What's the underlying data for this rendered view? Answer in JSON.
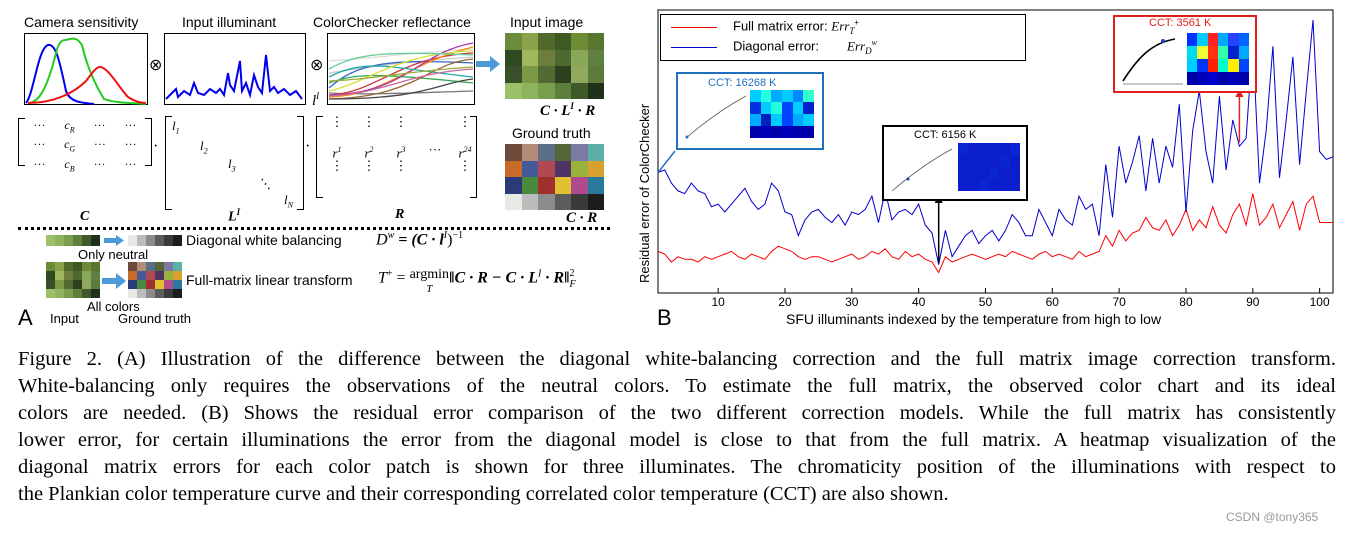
{
  "panelA": {
    "letter": "A",
    "titles": {
      "camera": "Camera sensitivity",
      "illuminant": "Input illuminant",
      "reflectance": "ColorChecker reflectance",
      "input_image": "Input image",
      "ground_truth": "Ground truth"
    },
    "otimes": "⊗",
    "l_label": "l",
    "l_sup": "I",
    "product_in": "C · L",
    "product_in_sup": "I",
    "product_in_tail": " · R",
    "product_gt": "C · R",
    "mat_C": {
      "rows": [
        [
          "···",
          "c",
          "R",
          "···",
          "···"
        ],
        [
          "···",
          "c",
          "G",
          "···",
          "···"
        ],
        [
          "···",
          "c",
          "B",
          "···",
          "···"
        ]
      ],
      "label": "C"
    },
    "mat_L": {
      "entries": [
        "l",
        "l",
        "l",
        "⋱",
        "l"
      ],
      "subs": [
        "1",
        "2",
        "3",
        "",
        "N"
      ],
      "label": "L",
      "label_sup": "I"
    },
    "mat_R": {
      "cols": [
        "r",
        "r",
        "r",
        "···",
        "r"
      ],
      "sups": [
        "1",
        "2",
        "3",
        "",
        "24"
      ],
      "label": "R"
    },
    "dot": "·",
    "diag_wb": "Diagonal white balancing",
    "diag_formula": "D",
    "diag_formula_sup": "w",
    "diag_formula_rest": " = (C · l",
    "diag_formula_sup2": "I",
    "diag_formula_end": ")",
    "diag_formula_exp": "−1",
    "only_neutral": "Only neutral",
    "full_matrix": "Full-matrix linear transform",
    "full_formula_T": "T",
    "full_formula_sup": "+",
    "full_formula_eq": " = ",
    "argmin": "argmin",
    "argmin_sub": "T",
    "full_formula_body": "‖C · R − C · L",
    "full_formula_body_sup": "I",
    "full_formula_body_end": " · R‖",
    "full_formula_norm_sup": "2",
    "full_formula_norm_sub": "F",
    "all_colors": "All colors",
    "input": "Input",
    "ground_truth": "Ground truth"
  },
  "panelB": {
    "letter": "B",
    "legend": {
      "full_label": "Full matrix error:",
      "full_sym": "Err",
      "full_sub": "T",
      "full_sub2": "+",
      "diag_label": "Diagonal error:",
      "diag_sym": "Err",
      "diag_sub": "D",
      "diag_sub2": "w"
    },
    "insets": [
      {
        "title": "CCT: 16268 K",
        "color": "#1f6fbf"
      },
      {
        "title": "CCT: 6156 K",
        "color": "#000000"
      },
      {
        "title": "CCT: 3561 K",
        "color": "#e0201d"
      }
    ]
  },
  "chart_data": {
    "type": "line",
    "xlabel": "SFU illuminants indexed by the temperature from high to low",
    "ylabel": "Residual error of ColorChecker",
    "xticks": [
      10,
      20,
      30,
      40,
      50,
      60,
      70,
      80,
      90,
      100
    ],
    "xlim": [
      1,
      102
    ],
    "ylim": [
      0,
      1
    ],
    "series": [
      {
        "name": "Full matrix error",
        "color": "#ff0000",
        "values": [
          0.12,
          0.11,
          0.08,
          0.1,
          0.09,
          0.09,
          0.08,
          0.1,
          0.09,
          0.1,
          0.11,
          0.12,
          0.1,
          0.09,
          0.11,
          0.1,
          0.09,
          0.12,
          0.14,
          0.13,
          0.12,
          0.1,
          0.09,
          0.1,
          0.1,
          0.09,
          0.08,
          0.09,
          0.1,
          0.11,
          0.09,
          0.1,
          0.12,
          0.11,
          0.13,
          0.1,
          0.09,
          0.12,
          0.1,
          0.11,
          0.09,
          0.08,
          0.04,
          0.1,
          0.08,
          0.09,
          0.1,
          0.11,
          0.1,
          0.09,
          0.1,
          0.11,
          0.1,
          0.12,
          0.11,
          0.1,
          0.09,
          0.11,
          0.12,
          0.1,
          0.11,
          0.1,
          0.09,
          0.12,
          0.1,
          0.11,
          0.12,
          0.18,
          0.14,
          0.2,
          0.16,
          0.19,
          0.2,
          0.25,
          0.21,
          0.2,
          0.24,
          0.18,
          0.22,
          0.28,
          0.2,
          0.24,
          0.21,
          0.29,
          0.22,
          0.19,
          0.26,
          0.3,
          0.22,
          0.34,
          0.22,
          0.25,
          0.3,
          0.21,
          0.26,
          0.31,
          0.2,
          0.3,
          0.33,
          0.23,
          0.23,
          0.23
        ]
      },
      {
        "name": "Diagonal error",
        "color": "#0000cc",
        "values": [
          0.42,
          0.43,
          0.38,
          0.35,
          0.34,
          0.38,
          0.35,
          0.34,
          0.29,
          0.3,
          0.27,
          0.3,
          0.33,
          0.36,
          0.31,
          0.28,
          0.3,
          0.38,
          0.35,
          0.27,
          0.26,
          0.18,
          0.24,
          0.27,
          0.28,
          0.25,
          0.23,
          0.26,
          0.22,
          0.27,
          0.26,
          0.28,
          0.33,
          0.23,
          0.35,
          0.24,
          0.27,
          0.28,
          0.26,
          0.3,
          0.22,
          0.19,
          0.07,
          0.2,
          0.1,
          0.14,
          0.18,
          0.2,
          0.15,
          0.18,
          0.2,
          0.16,
          0.2,
          0.26,
          0.23,
          0.18,
          0.18,
          0.28,
          0.23,
          0.18,
          0.28,
          0.24,
          0.22,
          0.33,
          0.28,
          0.3,
          0.18,
          0.45,
          0.25,
          0.52,
          0.38,
          0.46,
          0.56,
          0.35,
          0.55,
          0.38,
          0.52,
          0.44,
          0.68,
          0.27,
          0.58,
          0.73,
          0.5,
          0.38,
          0.71,
          0.43,
          0.62,
          0.52,
          0.55,
          0.92,
          0.38,
          0.58,
          0.9,
          0.4,
          0.62,
          0.86,
          0.45,
          0.73,
          1.0,
          0.5,
          0.47,
          0.48
        ]
      }
    ]
  },
  "caption": {
    "lines": [
      "Figure 2. (A) Illustration of the difference between the diagonal white-balancing correction and the full matrix image correction transform.",
      "White-balancing only requires the observations of the neutral colors.  To estimate the full matrix, the observed color chart and its ideal",
      "colors are needed. (B) Shows the residual error comparison of the two different correction models. While the full matrix has consistently",
      "lower error, for certain illuminations the error from the diagonal model is close to that from the full matrix. A heatmap visualization of the",
      "diagonal matrix errors for each color patch is shown for three illuminates. The chromaticity position of the illuminations with respect to",
      "the Plankian color temperature curve and their corresponding correlated color temperature (CCT) are also shown."
    ]
  },
  "watermark": "CSDN @tony365",
  "colors": {
    "input_patches": [
      "#6b8a3a",
      "#8aa34b",
      "#4f6a2a",
      "#3c5a22",
      "#6f8a34",
      "#57762e",
      "#2f4a22",
      "#a0b85c",
      "#6e7d3b",
      "#4c6a2e",
      "#8aa858",
      "#5e8040",
      "#37502a",
      "#7c9a45",
      "#506c33",
      "#2c4020",
      "#91a85e",
      "#5c7a3a",
      "#9cc06a",
      "#8fb45e",
      "#789e4e",
      "#5d7e3c",
      "#3e5a2a",
      "#20301a"
    ],
    "gt_patches": [
      "#6e4a3a",
      "#b48a78",
      "#5a6e88",
      "#55683a",
      "#7a7aa2",
      "#5cb0a8",
      "#c86a2a",
      "#445a9a",
      "#b04a52",
      "#4e3464",
      "#98b23c",
      "#d8a02c",
      "#2a3c78",
      "#4a8a3e",
      "#a0302e",
      "#e0c030",
      "#b04a8e",
      "#2a789c",
      "#e8e8e4",
      "#bcbcbc",
      "#8c8c8c",
      "#5c5c5c",
      "#3a3a3a",
      "#1c1c1c"
    ]
  }
}
